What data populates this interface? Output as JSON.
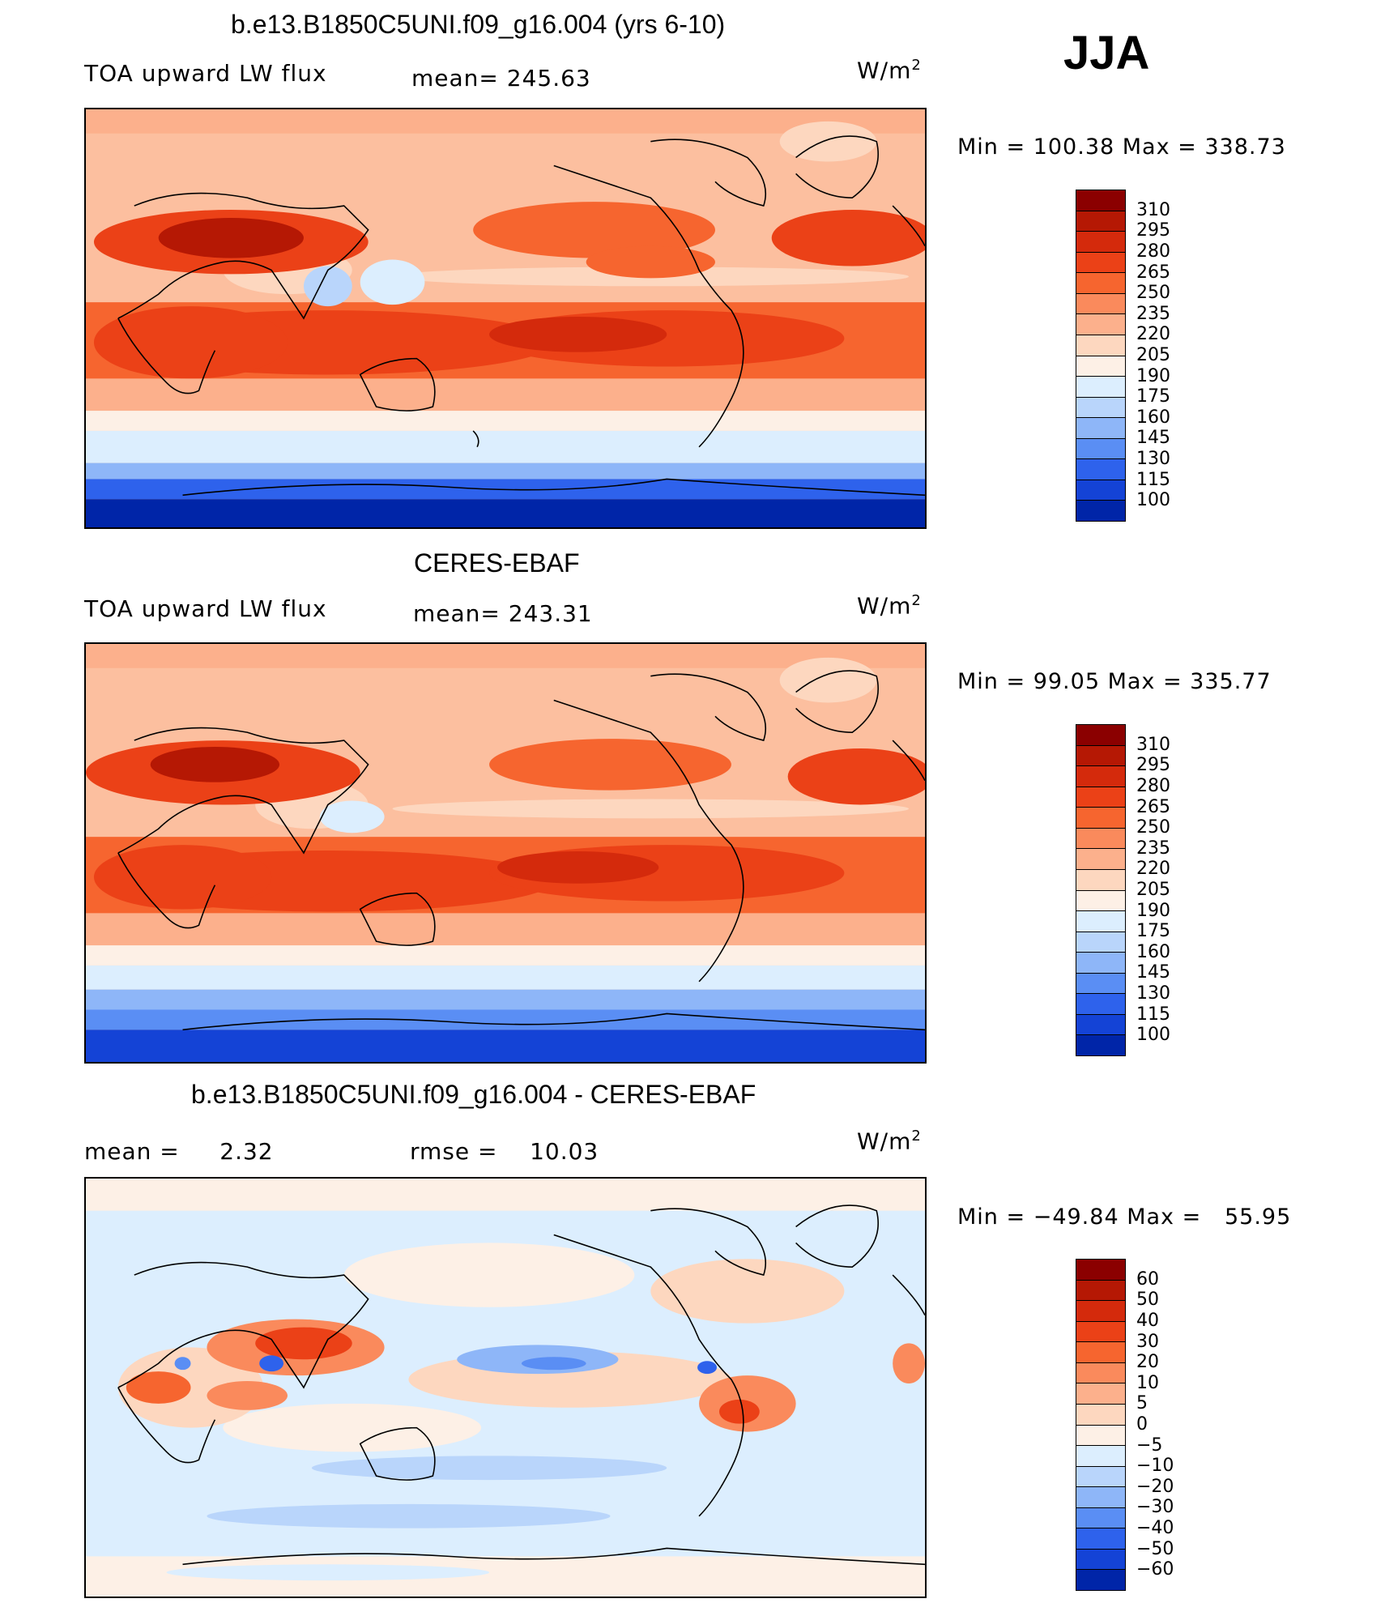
{
  "season": "JJA",
  "colors": {
    "warm": [
      "#fde8d8",
      "#fcc6a8",
      "#fba47e",
      "#f8794a",
      "#f04e21",
      "#e33213",
      "#c21a09",
      "#8b0000"
    ],
    "cool": [
      "#d8ecfc",
      "#b4d2fb",
      "#8cb4f9",
      "#5f92f5",
      "#3a70ee",
      "#1f52e0",
      "#0c36bd",
      "#001f8a",
      "#000080"
    ]
  },
  "panels": [
    {
      "id": "model",
      "title": "b.e13.B1850C5UNI.f09_g16.004 (yrs 6-10)",
      "left_text": "TOA upward LW flux",
      "center_text": "mean= 245.63",
      "unit": "W/m",
      "unit_sup": "2",
      "minmax": "Min = 100.38 Max = 338.73",
      "levels": [
        "310",
        "295",
        "280",
        "265",
        "250",
        "235",
        "220",
        "205",
        "190",
        "175",
        "160",
        "145",
        "130",
        "115",
        "100"
      ],
      "colors": [
        "#8b0000",
        "#b51804",
        "#d42a0c",
        "#eb4117",
        "#f6652f",
        "#fa8a5c",
        "#fcb08c",
        "#fdd7bf",
        "#fdf0e6",
        "#dceefe",
        "#b9d5fb",
        "#8eb6f8",
        "#5a8ef4",
        "#2e62ec",
        "#1443d6",
        "#0025a8",
        "#000088"
      ]
    },
    {
      "id": "obs",
      "title": "CERES-EBAF",
      "left_text": "TOA upward LW flux",
      "center_text": "mean= 243.31",
      "unit": "W/m",
      "unit_sup": "2",
      "minmax": "Min =   99.05 Max = 335.77",
      "levels": [
        "310",
        "295",
        "280",
        "265",
        "250",
        "235",
        "220",
        "205",
        "190",
        "175",
        "160",
        "145",
        "130",
        "115",
        "100"
      ],
      "colors": [
        "#8b0000",
        "#b51804",
        "#d42a0c",
        "#eb4117",
        "#f6652f",
        "#fa8a5c",
        "#fcb08c",
        "#fdd7bf",
        "#fdf0e6",
        "#dceefe",
        "#b9d5fb",
        "#8eb6f8",
        "#5a8ef4",
        "#2e62ec",
        "#1443d6",
        "#0025a8",
        "#000088"
      ]
    },
    {
      "id": "diff",
      "title": "b.e13.B1850C5UNI.f09_g16.004 - CERES-EBAF",
      "left_text": "mean =     2.32",
      "center_text": "rmse =    10.03",
      "unit": "W/m",
      "unit_sup": "2",
      "minmax": "Min = −49.84 Max =   55.95",
      "levels": [
        "60",
        "50",
        "40",
        "30",
        "20",
        "10",
        "5",
        "0",
        "−5",
        "−10",
        "−20",
        "−30",
        "−40",
        "−50",
        "−60"
      ],
      "colors": [
        "#8b0000",
        "#b51804",
        "#d42a0c",
        "#eb4117",
        "#f6652f",
        "#fa8a5c",
        "#fcb08c",
        "#fdd7bf",
        "#fdf0e6",
        "#dceefe",
        "#b9d5fb",
        "#8eb6f8",
        "#5a8ef4",
        "#2e62ec",
        "#1443d6",
        "#0025a8",
        "#000088"
      ]
    }
  ]
}
